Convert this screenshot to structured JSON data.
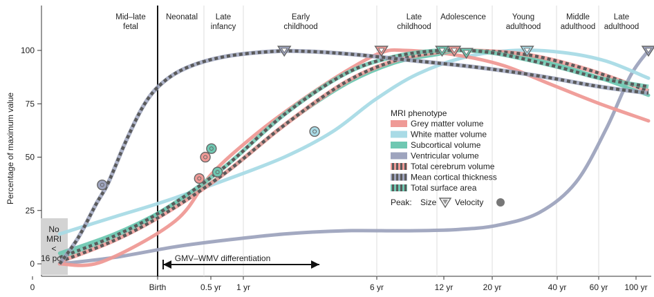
{
  "chart_data": {
    "type": "line",
    "ylabel": "Percentage of maximum value",
    "ylim": [
      0,
      105
    ],
    "y_ticks": [
      "0",
      "25",
      "50",
      "75",
      "100"
    ],
    "x_ticks": [
      "0",
      "Birth",
      "0.5 yr",
      "1 yr",
      "6 yr",
      "12 yr",
      "20 yr",
      "40 yr",
      "60 yr",
      "100 yr"
    ],
    "stages": [
      "Mid–late fetal",
      "Neonatal",
      "Late infancy",
      "Early childhood",
      "Late childhood",
      "Adolescence",
      "Young adulthood",
      "Middle adulthood",
      "Late adulthood"
    ],
    "no_mri_label": "No MRI < 16 pcw",
    "annotation": "GMV–WMV differentiation",
    "legend": {
      "title": "MRI phenotype",
      "peak_label": "Peak:",
      "size_label": "Size",
      "velocity_label": "Velocity"
    },
    "series": [
      {
        "name": "Grey matter volume",
        "style": "solid",
        "color": "#ef9a96",
        "points": [
          [
            0.03,
            0
          ],
          [
            0.1,
            1
          ],
          [
            0.22,
            20
          ],
          [
            0.28,
            42
          ],
          [
            0.35,
            60
          ],
          [
            0.42,
            75
          ],
          [
            0.5,
            90
          ],
          [
            0.56,
            99
          ],
          [
            0.6,
            100
          ],
          [
            0.68,
            98
          ],
          [
            0.76,
            93
          ],
          [
            0.84,
            84
          ],
          [
            0.92,
            75
          ],
          [
            1.0,
            67
          ]
        ],
        "peak_size": [
          0.56,
          100
        ],
        "peak_velocity": [
          0.27,
          50
        ]
      },
      {
        "name": "White matter volume",
        "style": "solid",
        "color": "#a9dbe6",
        "points": [
          [
            0.03,
            14
          ],
          [
            0.12,
            22
          ],
          [
            0.2,
            29
          ],
          [
            0.3,
            39
          ],
          [
            0.4,
            50
          ],
          [
            0.48,
            62
          ],
          [
            0.55,
            77
          ],
          [
            0.62,
            89
          ],
          [
            0.7,
            97
          ],
          [
            0.78,
            100
          ],
          [
            0.86,
            99
          ],
          [
            0.93,
            95
          ],
          [
            1.0,
            87
          ]
        ],
        "peak_size": [
          0.8,
          100
        ],
        "peak_velocity": [
          0.45,
          62
        ]
      },
      {
        "name": "Subcortical volume",
        "style": "solid",
        "color": "#6fc8b2",
        "points": [
          [
            0.03,
            5
          ],
          [
            0.12,
            14
          ],
          [
            0.2,
            25
          ],
          [
            0.3,
            42
          ],
          [
            0.4,
            65
          ],
          [
            0.5,
            84
          ],
          [
            0.58,
            94
          ],
          [
            0.65,
            98
          ],
          [
            0.7,
            100
          ],
          [
            0.8,
            97
          ],
          [
            0.9,
            89
          ],
          [
            1.0,
            79
          ]
        ],
        "peak_size": [
          0.7,
          99
        ],
        "peak_velocity": [
          0.28,
          54
        ]
      },
      {
        "name": "Ventricular volume",
        "style": "solid",
        "color": "#9ea4be",
        "points": [
          [
            0.03,
            0
          ],
          [
            0.12,
            3
          ],
          [
            0.22,
            8
          ],
          [
            0.3,
            11
          ],
          [
            0.4,
            14
          ],
          [
            0.5,
            15.5
          ],
          [
            0.6,
            15.5
          ],
          [
            0.68,
            16
          ],
          [
            0.75,
            18
          ],
          [
            0.82,
            24
          ],
          [
            0.88,
            38
          ],
          [
            0.93,
            63
          ],
          [
            0.97,
            88
          ],
          [
            1.0,
            100
          ]
        ],
        "peak_size": [
          1.0,
          100
        ]
      },
      {
        "name": "Total cerebrum volume",
        "style": "dashed",
        "color": "#ef9a96",
        "points": [
          [
            0.03,
            1
          ],
          [
            0.12,
            11
          ],
          [
            0.2,
            23
          ],
          [
            0.3,
            42
          ],
          [
            0.4,
            65
          ],
          [
            0.5,
            85
          ],
          [
            0.58,
            95
          ],
          [
            0.65,
            99
          ],
          [
            0.7,
            100
          ],
          [
            0.8,
            98
          ],
          [
            0.9,
            91
          ],
          [
            1.0,
            81
          ]
        ],
        "peak_size": [
          0.68,
          100
        ],
        "peak_velocity": [
          0.26,
          40
        ]
      },
      {
        "name": "Mean cortical thickness",
        "style": "dashed",
        "color": "#9ea4be",
        "points": [
          [
            0.03,
            0
          ],
          [
            0.06,
            12
          ],
          [
            0.09,
            28
          ],
          [
            0.11,
            38
          ],
          [
            0.14,
            58
          ],
          [
            0.17,
            75
          ],
          [
            0.2,
            85
          ],
          [
            0.24,
            92
          ],
          [
            0.3,
            97
          ],
          [
            0.38,
            99.5
          ],
          [
            0.44,
            99.5
          ],
          [
            0.52,
            98
          ],
          [
            0.62,
            95
          ],
          [
            0.72,
            92
          ],
          [
            0.82,
            88
          ],
          [
            0.92,
            83
          ],
          [
            1.0,
            80
          ]
        ],
        "peak_size": [
          0.4,
          100
        ],
        "peak_velocity": [
          0.1,
          37
        ]
      },
      {
        "name": "Total surface area",
        "style": "dashed",
        "color": "#6fc8b2",
        "points": [
          [
            0.03,
            3
          ],
          [
            0.12,
            13
          ],
          [
            0.2,
            25
          ],
          [
            0.3,
            45
          ],
          [
            0.4,
            70
          ],
          [
            0.5,
            89
          ],
          [
            0.58,
            97
          ],
          [
            0.66,
            100
          ],
          [
            0.74,
            99
          ],
          [
            0.84,
            93
          ],
          [
            0.92,
            87
          ],
          [
            1.0,
            83
          ]
        ],
        "peak_size": [
          0.66,
          100
        ],
        "peak_velocity": [
          0.29,
          43
        ]
      }
    ]
  }
}
